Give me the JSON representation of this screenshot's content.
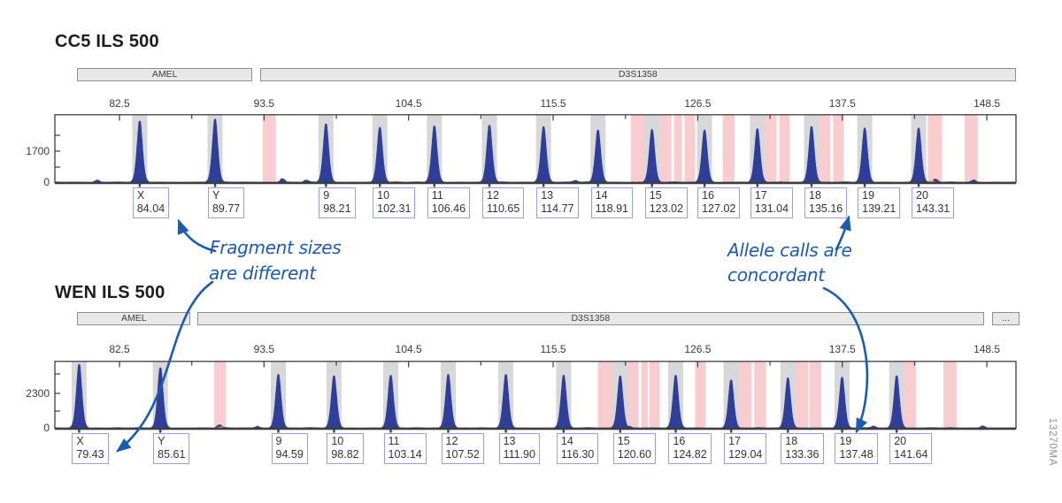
{
  "figure": {
    "id": "13270MA"
  },
  "annotations": {
    "fragment": {
      "line1": "Fragment sizes",
      "line2": "are different"
    },
    "allele": {
      "line1": "Allele calls are",
      "line2": "concordant"
    }
  },
  "colors": {
    "peak": "#2e3e99",
    "bin_pink": "#f8cdd0",
    "bin_gray": "#d8d8da",
    "annotation_blue": "#1c5bad",
    "box_border": "#9aa1d8",
    "axis": "#3d3d3d",
    "bar_fill": "#e8e8e8",
    "bar_border": "#8f8f8f",
    "noise_orange": "#eda14e",
    "figure_id_gray": "#8e8e8e"
  },
  "chart_data": [
    {
      "type": "area",
      "title": "CC5 ILS 500",
      "ylabel_max": "1700",
      "ylabel_zero": "0",
      "x_ticks": [
        "82.5",
        "93.5",
        "104.5",
        "115.5",
        "126.5",
        "137.5",
        "148.5"
      ],
      "x_minor_step": 5.5,
      "x_range": [
        77.6,
        150.7
      ],
      "grid": false,
      "marker_bars": [
        {
          "label": "AMEL",
          "from": 79.3,
          "to": 92.6
        },
        {
          "label": "D3S1358",
          "from": 93.2,
          "to": 150.7
        }
      ],
      "peaks": [
        {
          "allele": "X",
          "size": "84.04",
          "h": 0.9
        },
        {
          "allele": "Y",
          "size": "89.77",
          "h": 0.93
        },
        {
          "allele": "9",
          "size": "98.21",
          "h": 0.86
        },
        {
          "allele": "10",
          "size": "102.31",
          "h": 0.81
        },
        {
          "allele": "11",
          "size": "106.46",
          "h": 0.83
        },
        {
          "allele": "12",
          "size": "110.65",
          "h": 0.84
        },
        {
          "allele": "13",
          "size": "114.77",
          "h": 0.82
        },
        {
          "allele": "14",
          "size": "118.91",
          "h": 0.77
        },
        {
          "allele": "15",
          "size": "123.02",
          "h": 0.78
        },
        {
          "allele": "16",
          "size": "127.02",
          "h": 0.77
        },
        {
          "allele": "17",
          "size": "131.04",
          "h": 0.79
        },
        {
          "allele": "18",
          "size": "135.16",
          "h": 0.82
        },
        {
          "allele": "19",
          "size": "139.21",
          "h": 0.8
        },
        {
          "allele": "20",
          "size": "143.31",
          "h": 0.8
        }
      ],
      "pink_bins": [
        [
          93.4,
          94.4
        ],
        [
          121.4,
          124.5
        ],
        [
          124.7,
          125.3
        ],
        [
          125.5,
          126.3
        ],
        [
          128.4,
          129.3
        ],
        [
          131.5,
          132.5
        ],
        [
          132.7,
          133.5
        ],
        [
          135.6,
          136.6
        ],
        [
          136.8,
          137.6
        ],
        [
          144.0,
          145.1
        ],
        [
          146.8,
          147.8
        ]
      ]
    },
    {
      "type": "area",
      "title": "WEN ILS 500",
      "ylabel_max": "2300",
      "ylabel_zero": "0",
      "x_ticks": [
        "82.5",
        "93.5",
        "104.5",
        "115.5",
        "126.5",
        "137.5",
        "148.5"
      ],
      "x_minor_step": 5.5,
      "x_range": [
        77.6,
        150.7
      ],
      "grid": false,
      "marker_bars": [
        {
          "label": "AMEL",
          "from": 79.3,
          "to": 87.9
        },
        {
          "label": "D3S1358",
          "from": 88.4,
          "to": 148.3
        },
        {
          "label": "...",
          "from": 148.9,
          "to": 151.0
        }
      ],
      "peaks": [
        {
          "allele": "X",
          "size": "79.43",
          "h": 0.95
        },
        {
          "allele": "Y",
          "size": "85.61",
          "h": 0.9
        },
        {
          "allele": "9",
          "size": "94.59",
          "h": 0.8
        },
        {
          "allele": "10",
          "size": "98.82",
          "h": 0.78
        },
        {
          "allele": "11",
          "size": "103.14",
          "h": 0.79
        },
        {
          "allele": "12",
          "size": "107.52",
          "h": 0.8
        },
        {
          "allele": "13",
          "size": "111.90",
          "h": 0.8
        },
        {
          "allele": "14",
          "size": "116.30",
          "h": 0.79
        },
        {
          "allele": "15",
          "size": "120.60",
          "h": 0.78
        },
        {
          "allele": "16",
          "size": "124.82",
          "h": 0.79
        },
        {
          "allele": "17",
          "size": "129.04",
          "h": 0.72
        },
        {
          "allele": "18",
          "size": "133.36",
          "h": 0.75
        },
        {
          "allele": "19",
          "size": "137.48",
          "h": 0.76
        },
        {
          "allele": "20",
          "size": "141.64",
          "h": 0.78
        }
      ],
      "pink_bins": [
        [
          89.7,
          90.6
        ],
        [
          118.9,
          122.0
        ],
        [
          122.2,
          122.7
        ],
        [
          122.8,
          123.6
        ],
        [
          126.3,
          127.1
        ],
        [
          129.6,
          130.6
        ],
        [
          130.8,
          131.7
        ],
        [
          133.8,
          134.9
        ],
        [
          135.0,
          135.9
        ],
        [
          142.2,
          143.1
        ],
        [
          145.2,
          146.2
        ]
      ]
    }
  ]
}
